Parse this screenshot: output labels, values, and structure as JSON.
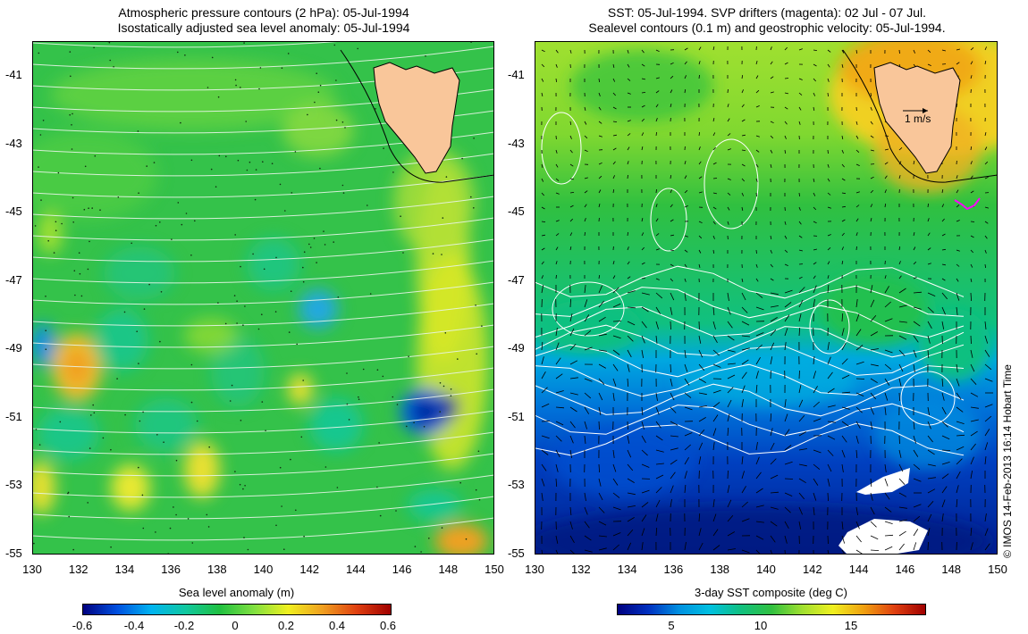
{
  "left_panel": {
    "title_line1": "Atmospheric pressure contours (2 hPa): 05-Jul-1994",
    "title_line2": "Isostatically adjusted sea level anomaly: 05-Jul-1994",
    "colorbar_label": "Sea level anomaly (m)",
    "colorbar_ticks": [
      "-0.6",
      "-0.4",
      "-0.2",
      "0",
      "0.2",
      "0.4",
      "0.6"
    ]
  },
  "right_panel": {
    "title_line1": "SST: 05-Jul-1994. SVP drifters (magenta): 02 Jul - 07 Jul.",
    "title_line2": "Sealevel contours (0.1 m) and geostrophic velocity: 05-Jul-1994.",
    "velocity_scale_label": "1 m/s",
    "colorbar_label": "3-day SST composite (deg C)",
    "colorbar_ticks": [
      "5",
      "10",
      "15"
    ]
  },
  "axes": {
    "x_ticks": [
      "130",
      "132",
      "134",
      "136",
      "138",
      "140",
      "142",
      "144",
      "146",
      "148",
      "150"
    ],
    "y_ticks": [
      "-41",
      "-43",
      "-45",
      "-47",
      "-49",
      "-51",
      "-53",
      "-55"
    ]
  },
  "credit": "© IMOS 14-Feb-2013 16:14 Hobart Time",
  "colors": {
    "land": "#f9c69a",
    "pressure_contours": "#e8f4e8",
    "drifter": "#ff00ff",
    "sla_colormap": [
      "#000080",
      "#0050e0",
      "#00b4f0",
      "#10c8a0",
      "#20c040",
      "#80e040",
      "#f0f020",
      "#f0a020",
      "#e04010",
      "#a00000"
    ],
    "sst_colormap": [
      "#000080",
      "#0030c0",
      "#0090e0",
      "#00c0e0",
      "#10c080",
      "#30c040",
      "#a0e030",
      "#f0f020",
      "#f0a010",
      "#e04010",
      "#a00000"
    ]
  }
}
